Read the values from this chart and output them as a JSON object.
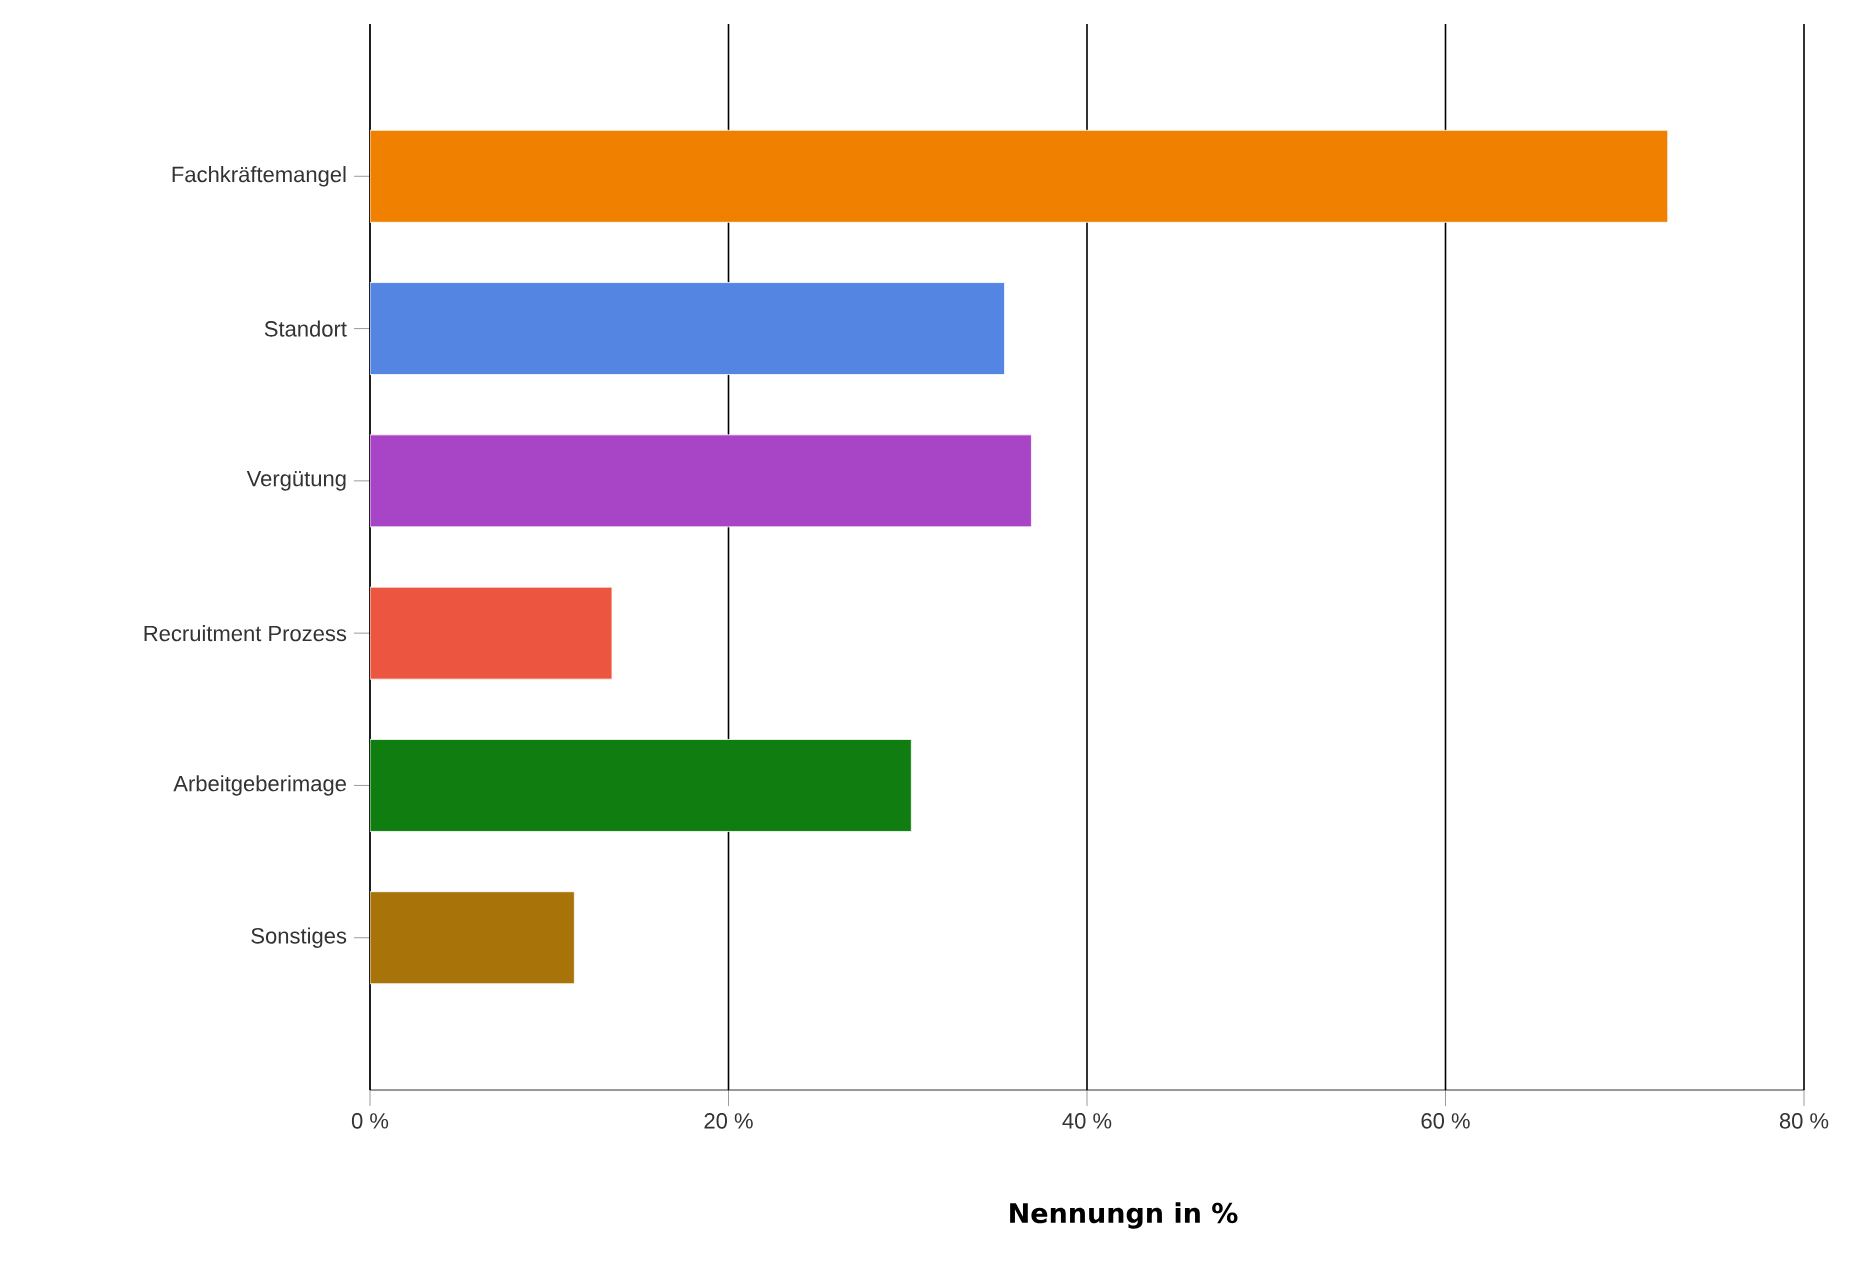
{
  "chart_data": {
    "type": "bar",
    "orientation": "horizontal",
    "xlabel": "Nennungn in %",
    "categories": [
      "Fachkräftemangel",
      "Standort",
      "Vergütung",
      "Recruitment Prozess",
      "Arbeitgeberimage",
      "Sonstiges"
    ],
    "values": [
      72.4,
      35.4,
      36.9,
      13.5,
      30.2,
      11.4
    ],
    "colors": [
      "#f08000",
      "#5585e2",
      "#a845c6",
      "#ec5540",
      "#107d10",
      "#a87308"
    ],
    "xlim": [
      0,
      80
    ],
    "xticks": [
      {
        "value": 0,
        "label": "0 %"
      },
      {
        "value": 20,
        "label": "20 %"
      },
      {
        "value": 40,
        "label": "40 %"
      },
      {
        "value": 60,
        "label": "60 %"
      },
      {
        "value": 80,
        "label": "80 %"
      }
    ],
    "grid": "x"
  }
}
